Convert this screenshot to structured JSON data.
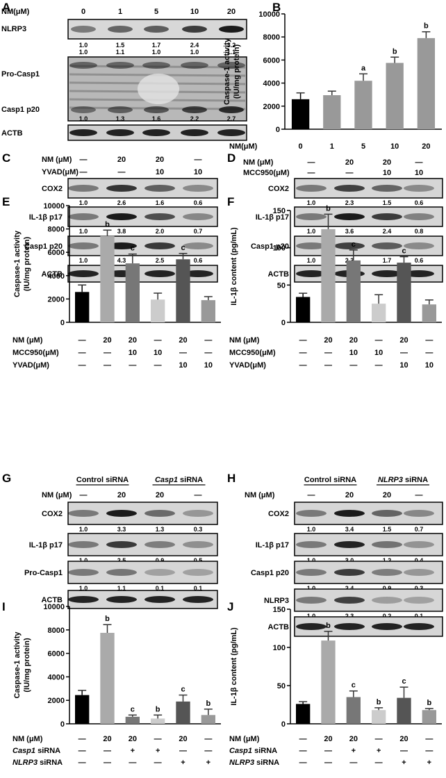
{
  "panels": {
    "A": {
      "letter": "A",
      "header": {
        "label": "NM(μM)",
        "values": [
          "0",
          "1",
          "5",
          "10",
          "20"
        ]
      },
      "strips": [
        {
          "label": "NLRP3",
          "quant": [
            "1.0",
            "1.5",
            "1.7",
            "2.4",
            "3.2"
          ]
        },
        {
          "label": "Pro-Casp1",
          "quant": [
            "1.0",
            "1.1",
            "1.0",
            "1.0",
            "1.1"
          ]
        },
        {
          "label": "Casp1 p20",
          "quant": [
            "1.0",
            "1.3",
            "1.6",
            "2.2",
            "2.7"
          ]
        },
        {
          "label": "ACTB",
          "quant": []
        }
      ]
    },
    "C": {
      "letter": "C",
      "rows": [
        {
          "label": "NM (μM)",
          "values": [
            "—",
            "20",
            "20",
            "—"
          ]
        },
        {
          "label": "YVAD(μM)",
          "values": [
            "—",
            "—",
            "10",
            "10"
          ]
        }
      ],
      "strips": [
        {
          "label": "COX2",
          "quant": [
            "1.0",
            "2.6",
            "1.6",
            "0.6"
          ]
        },
        {
          "label": "IL-1β p17",
          "quant": [
            "1.0",
            "3.8",
            "2.0",
            "0.7"
          ]
        },
        {
          "label": "Casp1 p20",
          "quant": [
            "1.0",
            "4.3",
            "2.5",
            "0.6"
          ]
        },
        {
          "label": "ACTB",
          "quant": []
        }
      ]
    },
    "D": {
      "letter": "D",
      "rows": [
        {
          "label": "NM (μM)",
          "values": [
            "—",
            "20",
            "20",
            "—"
          ]
        },
        {
          "label": "MCC950(μM)",
          "values": [
            "—",
            "—",
            "10",
            "10"
          ]
        }
      ],
      "strips": [
        {
          "label": "COX2",
          "quant": [
            "1.0",
            "2.3",
            "1.5",
            "0.6"
          ]
        },
        {
          "label": "IL-1β p17",
          "quant": [
            "1.0",
            "3.6",
            "2.4",
            "0.8"
          ]
        },
        {
          "label": "Casp1 p20",
          "quant": [
            "1.0",
            "2.3",
            "1.7",
            "0.6"
          ]
        },
        {
          "label": "ACTB",
          "quant": []
        }
      ]
    },
    "G": {
      "letter": "G",
      "groups": [
        "Control siRNA",
        "Casp1 siRNA"
      ],
      "rows": [
        {
          "label": "NM (μM)",
          "values": [
            "—",
            "20",
            "20",
            "—"
          ]
        }
      ],
      "strips": [
        {
          "label": "COX2",
          "quant": [
            "1.0",
            "3.3",
            "1.3",
            "0.3"
          ]
        },
        {
          "label": "IL-1β p17",
          "quant": [
            "1.0",
            "2.5",
            "0.9",
            "0.5"
          ]
        },
        {
          "label": "Pro-Casp1",
          "quant": [
            "1.0",
            "1.1",
            "0.1",
            "0.1"
          ]
        },
        {
          "label": "ACTB",
          "quant": []
        }
      ]
    },
    "H": {
      "letter": "H",
      "groups": [
        "Control siRNA",
        "NLRP3 siRNA"
      ],
      "rows": [
        {
          "label": "NM (μM)",
          "values": [
            "—",
            "20",
            "20",
            "—"
          ]
        }
      ],
      "strips": [
        {
          "label": "COX2",
          "quant": [
            "1.0",
            "3.4",
            "1.5",
            "0.7"
          ]
        },
        {
          "label": "IL-1β p17",
          "quant": [
            "1.0",
            "3.0",
            "1.2",
            "0.4"
          ]
        },
        {
          "label": "Casp1 p20",
          "quant": [
            "1.0",
            "2.4",
            "0.9",
            "0.3"
          ]
        },
        {
          "label": "NLRP3",
          "quant": [
            "1.0",
            "2.3",
            "0.2",
            "0.1"
          ]
        },
        {
          "label": "ACTB",
          "quant": []
        }
      ]
    }
  },
  "chart_data": [
    {
      "id": "B",
      "type": "bar",
      "letter": "B",
      "ylabel": "Caspase-1 activity\n(IU/mg protein)",
      "ylim": [
        0,
        10000
      ],
      "yticks": [
        0,
        2000,
        4000,
        6000,
        8000,
        10000
      ],
      "categories": [
        "0",
        "1",
        "5",
        "10",
        "20"
      ],
      "values": [
        2600,
        2950,
        4200,
        5750,
        7900
      ],
      "errors": [
        550,
        350,
        600,
        500,
        550
      ],
      "letters": [
        "",
        "",
        "a",
        "b",
        "b"
      ],
      "colors": [
        "#000000",
        "#999999",
        "#999999",
        "#999999",
        "#999999"
      ],
      "xrows": [
        {
          "label": "NM(μM)",
          "values": [
            "0",
            "1",
            "5",
            "10",
            "20"
          ]
        }
      ]
    },
    {
      "id": "E",
      "type": "bar",
      "letter": "E",
      "ylabel": "Caspase-1 activity\n(IU/mg protein)",
      "ylim": [
        0,
        10000
      ],
      "yticks": [
        0,
        2000,
        4000,
        6000,
        8000,
        10000
      ],
      "categories": [
        "1",
        "2",
        "3",
        "4",
        "5",
        "6"
      ],
      "values": [
        2600,
        7400,
        5050,
        1950,
        5400,
        1900
      ],
      "errors": [
        600,
        500,
        800,
        550,
        500,
        300
      ],
      "letters": [
        "",
        "b",
        "c",
        "",
        "c",
        ""
      ],
      "colors": [
        "#000000",
        "#aaaaaa",
        "#777777",
        "#cccccc",
        "#555555",
        "#999999"
      ],
      "xrows": [
        {
          "label": "NM (μM)",
          "values": [
            "—",
            "20",
            "20",
            "—",
            "20",
            "—"
          ]
        },
        {
          "label": "MCC950(μM)",
          "values": [
            "—",
            "—",
            "10",
            "10",
            "—",
            "—"
          ]
        },
        {
          "label": "YVAD(μM)",
          "values": [
            "—",
            "—",
            "—",
            "—",
            "10",
            "10"
          ]
        }
      ]
    },
    {
      "id": "F",
      "type": "bar",
      "letter": "F",
      "ylabel": "IL-1β content (pg/mL)",
      "ylim": [
        0,
        150
      ],
      "yticks": [
        0,
        50,
        100,
        150
      ],
      "categories": [
        "1",
        "2",
        "3",
        "4",
        "5",
        "6"
      ],
      "values": [
        34,
        125,
        83,
        25,
        80,
        24
      ],
      "errors": [
        5,
        20,
        14,
        12,
        8,
        6
      ],
      "letters": [
        "",
        "b",
        "c",
        "",
        "c",
        ""
      ],
      "colors": [
        "#000000",
        "#aaaaaa",
        "#777777",
        "#cccccc",
        "#555555",
        "#999999"
      ],
      "xrows": [
        {
          "label": "NM (μM)",
          "values": [
            "—",
            "20",
            "20",
            "—",
            "20",
            "—"
          ]
        },
        {
          "label": "MCC950(μM)",
          "values": [
            "—",
            "—",
            "10",
            "10",
            "—",
            "—"
          ]
        },
        {
          "label": "YVAD(μM)",
          "values": [
            "—",
            "—",
            "—",
            "—",
            "10",
            "10"
          ]
        }
      ]
    },
    {
      "id": "I",
      "type": "bar",
      "letter": "I",
      "ylabel": "Caspase-1 activity\n(IU/mg protein)",
      "ylim": [
        0,
        10000
      ],
      "yticks": [
        0,
        2000,
        4000,
        6000,
        8000,
        10000
      ],
      "categories": [
        "1",
        "2",
        "3",
        "4",
        "5",
        "6"
      ],
      "values": [
        2450,
        7750,
        600,
        450,
        1900,
        750
      ],
      "errors": [
        400,
        700,
        150,
        300,
        550,
        500
      ],
      "letters": [
        "",
        "b",
        "c",
        "b",
        "c",
        "b"
      ],
      "colors": [
        "#000000",
        "#aaaaaa",
        "#777777",
        "#cccccc",
        "#555555",
        "#999999"
      ],
      "xrows": [
        {
          "label": "NM (μM)",
          "values": [
            "—",
            "20",
            "20",
            "—",
            "20",
            "—"
          ]
        },
        {
          "label": "Casp1 siRNA",
          "values": [
            "—",
            "—",
            "+",
            "+",
            "—",
            "—"
          ]
        },
        {
          "label": "NLRP3 siRNA",
          "values": [
            "—",
            "—",
            "—",
            "—",
            "+",
            "+"
          ]
        }
      ]
    },
    {
      "id": "J",
      "type": "bar",
      "letter": "J",
      "ylabel": "IL-1β content (pg/mL)",
      "ylim": [
        0,
        150
      ],
      "yticks": [
        0,
        50,
        100,
        150
      ],
      "categories": [
        "1",
        "2",
        "3",
        "4",
        "5",
        "6"
      ],
      "values": [
        26,
        109,
        35,
        18,
        34,
        18
      ],
      "errors": [
        3,
        12,
        8,
        3,
        14,
        2
      ],
      "letters": [
        "",
        "b",
        "c",
        "b",
        "c",
        "b"
      ],
      "colors": [
        "#000000",
        "#aaaaaa",
        "#777777",
        "#cccccc",
        "#555555",
        "#999999"
      ],
      "xrows": [
        {
          "label": "NM (μM)",
          "values": [
            "—",
            "20",
            "20",
            "—",
            "20",
            "—"
          ]
        },
        {
          "label": "Casp1 siRNA",
          "values": [
            "—",
            "—",
            "+",
            "+",
            "—",
            "—"
          ]
        },
        {
          "label": "NLRP3 siRNA",
          "values": [
            "—",
            "—",
            "—",
            "—",
            "+",
            "+"
          ]
        }
      ]
    }
  ]
}
